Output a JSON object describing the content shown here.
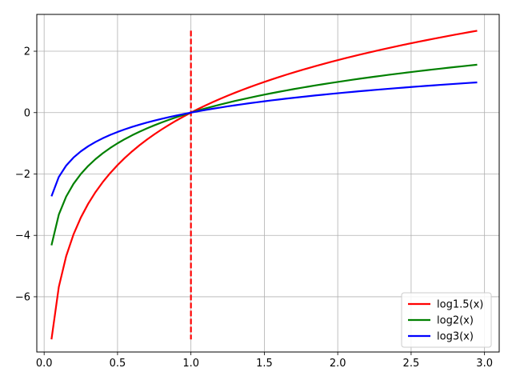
{
  "chart_data": {
    "type": "line",
    "title": "",
    "xlabel": "",
    "ylabel": "",
    "xlim": [
      -0.05,
      3.1
    ],
    "ylim": [
      -7.8,
      3.2
    ],
    "xticks": [
      0.0,
      0.5,
      1.0,
      1.5,
      2.0,
      2.5,
      3.0
    ],
    "xtick_labels": [
      "0.0",
      "0.5",
      "1.0",
      "1.5",
      "2.0",
      "2.5",
      "3.0"
    ],
    "yticks": [
      -6,
      -4,
      -2,
      0,
      2
    ],
    "ytick_labels": [
      "−6",
      "−4",
      "−2",
      "0",
      "2"
    ],
    "grid": true,
    "legend_position": "bottom-right",
    "x_range": [
      0.05,
      2.95
    ],
    "x_step": 0.05,
    "series": [
      {
        "name": "log1.5(x)",
        "base": 1.5,
        "color": "#ff0000"
      },
      {
        "name": "log2(x)",
        "base": 2,
        "color": "#008000"
      },
      {
        "name": "log3(x)",
        "base": 3,
        "color": "#0000ff"
      }
    ],
    "vertical_line": {
      "x": 1.0,
      "y_from": -7.39,
      "y_to": 2.67,
      "color": "#ff0000",
      "style": "dashed"
    }
  }
}
